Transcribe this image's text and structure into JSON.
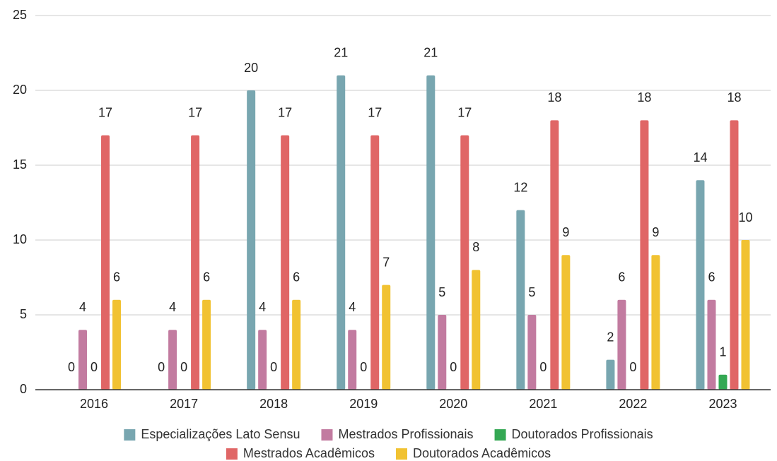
{
  "chart_data": {
    "type": "bar",
    "categories": [
      "2016",
      "2017",
      "2018",
      "2019",
      "2020",
      "2021",
      "2022",
      "2023"
    ],
    "series": [
      {
        "name": "Especializações Lato Sensu",
        "color": "#78a6b0",
        "values": [
          0,
          0,
          20,
          21,
          21,
          12,
          2,
          14
        ]
      },
      {
        "name": "Mestrados Profissionais",
        "color": "#c27ba0",
        "values": [
          4,
          4,
          4,
          4,
          5,
          5,
          6,
          6
        ]
      },
      {
        "name": "Doutorados Profissionais",
        "color": "#34a853",
        "values": [
          0,
          0,
          0,
          0,
          0,
          0,
          0,
          1
        ]
      },
      {
        "name": "Mestrados Acadêmicos",
        "color": "#e06666",
        "values": [
          17,
          17,
          17,
          17,
          17,
          18,
          18,
          18
        ]
      },
      {
        "name": "Doutorados Acadêmicos",
        "color": "#f1c232",
        "values": [
          6,
          6,
          6,
          7,
          8,
          9,
          9,
          10
        ]
      }
    ],
    "ylim": [
      0,
      25
    ],
    "yticks": [
      0,
      5,
      10,
      15,
      20,
      25
    ],
    "grid": true,
    "legend": "bottom"
  }
}
